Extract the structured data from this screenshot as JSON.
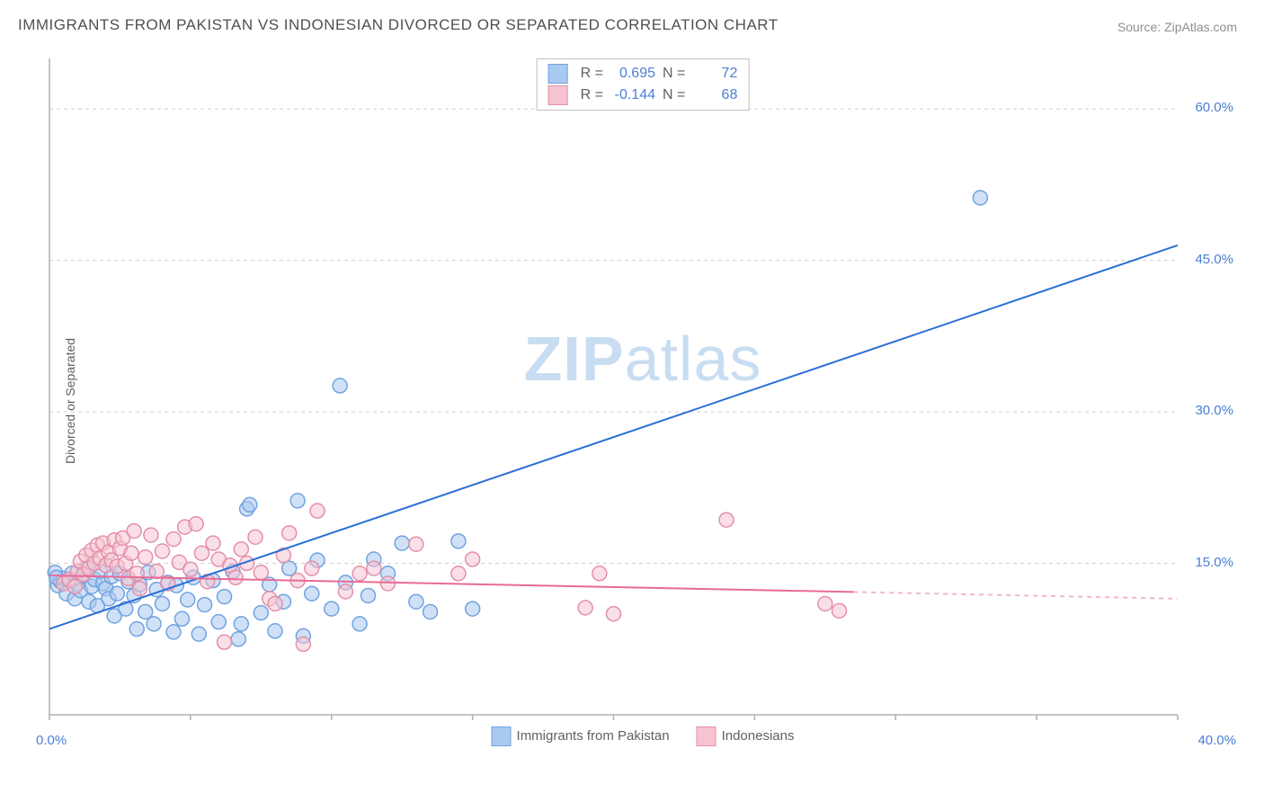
{
  "title": "IMMIGRANTS FROM PAKISTAN VS INDONESIAN DIVORCED OR SEPARATED CORRELATION CHART",
  "source": "Source: ZipAtlas.com",
  "y_axis_label": "Divorced or Separated",
  "watermark_bold": "ZIP",
  "watermark_light": "atlas",
  "chart": {
    "type": "scatter",
    "xlim": [
      0,
      40
    ],
    "ylim": [
      0,
      65
    ],
    "x_tick_labels": {
      "left": "0.0%",
      "right": "40.0%"
    },
    "y_ticks": [
      15.0,
      30.0,
      45.0,
      60.0
    ],
    "y_tick_labels": [
      "15.0%",
      "30.0%",
      "45.0%",
      "60.0%"
    ],
    "grid_color": "#d0d0d0",
    "axis_color": "#b0b0b0",
    "background_color": "#ffffff",
    "marker_radius": 8,
    "marker_stroke_width": 1.5,
    "series": [
      {
        "name": "Immigrants from Pakistan",
        "fill": "#aac9f0",
        "stroke": "#6fa3e0",
        "fill_opacity": 0.55,
        "r_label": "R =",
        "r_value": "0.695",
        "n_label": "N =",
        "n_value": "72",
        "trend": {
          "x1": 0,
          "y1": 8.5,
          "x2": 40,
          "y2": 46.5,
          "solid_until_x": 40,
          "color": "#2c6fd6",
          "width": 2
        },
        "points": [
          [
            0.3,
            12.8
          ],
          [
            0.4,
            13.2
          ],
          [
            0.5,
            13.5
          ],
          [
            0.6,
            12.0
          ],
          [
            0.8,
            14.0
          ],
          [
            0.9,
            11.5
          ],
          [
            1.0,
            13.0
          ],
          [
            1.1,
            12.3
          ],
          [
            1.2,
            13.8
          ],
          [
            1.3,
            14.5
          ],
          [
            1.4,
            11.2
          ],
          [
            1.5,
            12.7
          ],
          [
            1.6,
            13.4
          ],
          [
            1.7,
            10.8
          ],
          [
            1.8,
            14.2
          ],
          [
            1.9,
            13.0
          ],
          [
            2.0,
            12.5
          ],
          [
            2.1,
            11.5
          ],
          [
            2.2,
            13.7
          ],
          [
            2.3,
            9.8
          ],
          [
            2.4,
            12.0
          ],
          [
            2.5,
            14.0
          ],
          [
            2.7,
            10.5
          ],
          [
            2.8,
            13.2
          ],
          [
            3.0,
            11.8
          ],
          [
            3.1,
            8.5
          ],
          [
            3.2,
            12.9
          ],
          [
            3.4,
            10.2
          ],
          [
            3.5,
            14.1
          ],
          [
            3.7,
            9.0
          ],
          [
            3.8,
            12.4
          ],
          [
            4.0,
            11.0
          ],
          [
            4.2,
            13.1
          ],
          [
            4.4,
            8.2
          ],
          [
            4.5,
            12.8
          ],
          [
            4.7,
            9.5
          ],
          [
            4.9,
            11.4
          ],
          [
            5.1,
            13.6
          ],
          [
            5.3,
            8.0
          ],
          [
            5.5,
            10.9
          ],
          [
            5.8,
            13.3
          ],
          [
            6.0,
            9.2
          ],
          [
            6.2,
            11.7
          ],
          [
            6.5,
            14.2
          ],
          [
            6.7,
            7.5
          ],
          [
            6.8,
            9.0
          ],
          [
            7.0,
            20.4
          ],
          [
            7.1,
            20.8
          ],
          [
            7.5,
            10.1
          ],
          [
            7.8,
            12.9
          ],
          [
            8.0,
            8.3
          ],
          [
            8.3,
            11.2
          ],
          [
            8.5,
            14.5
          ],
          [
            8.8,
            21.2
          ],
          [
            9.0,
            7.8
          ],
          [
            9.3,
            12.0
          ],
          [
            9.5,
            15.3
          ],
          [
            10.0,
            10.5
          ],
          [
            10.3,
            32.6
          ],
          [
            10.5,
            13.1
          ],
          [
            11.0,
            9.0
          ],
          [
            11.3,
            11.8
          ],
          [
            11.5,
            15.4
          ],
          [
            12.0,
            14.0
          ],
          [
            12.5,
            17.0
          ],
          [
            13.0,
            11.2
          ],
          [
            13.5,
            10.2
          ],
          [
            14.5,
            17.2
          ],
          [
            15.0,
            10.5
          ],
          [
            33.0,
            51.2
          ],
          [
            0.2,
            14.1
          ],
          [
            0.25,
            13.6
          ]
        ]
      },
      {
        "name": "Indonesians",
        "fill": "#f6c4d1",
        "stroke": "#e390aa",
        "fill_opacity": 0.55,
        "r_label": "R =",
        "r_value": "-0.144",
        "n_label": "N =",
        "n_value": "68",
        "trend": {
          "x1": 0,
          "y1": 13.8,
          "x2": 40,
          "y2": 11.5,
          "solid_until_x": 28.5,
          "color": "#e86b94",
          "width": 2
        },
        "points": [
          [
            0.5,
            13.0
          ],
          [
            0.7,
            13.4
          ],
          [
            0.9,
            12.7
          ],
          [
            1.0,
            14.2
          ],
          [
            1.1,
            15.2
          ],
          [
            1.2,
            13.9
          ],
          [
            1.3,
            15.8
          ],
          [
            1.4,
            14.5
          ],
          [
            1.5,
            16.3
          ],
          [
            1.6,
            15.0
          ],
          [
            1.7,
            16.8
          ],
          [
            1.8,
            15.5
          ],
          [
            1.9,
            17.0
          ],
          [
            2.0,
            14.8
          ],
          [
            2.1,
            16.1
          ],
          [
            2.2,
            15.3
          ],
          [
            2.3,
            17.3
          ],
          [
            2.4,
            14.7
          ],
          [
            2.5,
            16.5
          ],
          [
            2.6,
            17.5
          ],
          [
            2.7,
            15.0
          ],
          [
            2.8,
            13.5
          ],
          [
            2.9,
            16.0
          ],
          [
            3.0,
            18.2
          ],
          [
            3.1,
            14.0
          ],
          [
            3.2,
            12.5
          ],
          [
            3.4,
            15.6
          ],
          [
            3.6,
            17.8
          ],
          [
            3.8,
            14.2
          ],
          [
            4.0,
            16.2
          ],
          [
            4.2,
            13.0
          ],
          [
            4.4,
            17.4
          ],
          [
            4.6,
            15.1
          ],
          [
            4.8,
            18.6
          ],
          [
            5.0,
            14.4
          ],
          [
            5.2,
            18.9
          ],
          [
            5.4,
            16.0
          ],
          [
            5.6,
            13.2
          ],
          [
            5.8,
            17.0
          ],
          [
            6.0,
            15.4
          ],
          [
            6.2,
            7.2
          ],
          [
            6.4,
            14.8
          ],
          [
            6.6,
            13.6
          ],
          [
            6.8,
            16.4
          ],
          [
            7.0,
            15.0
          ],
          [
            7.3,
            17.6
          ],
          [
            7.5,
            14.1
          ],
          [
            7.8,
            11.5
          ],
          [
            8.0,
            11.0
          ],
          [
            8.3,
            15.8
          ],
          [
            8.5,
            18.0
          ],
          [
            8.8,
            13.3
          ],
          [
            9.0,
            7.0
          ],
          [
            9.3,
            14.5
          ],
          [
            9.5,
            20.2
          ],
          [
            10.5,
            12.2
          ],
          [
            11.0,
            14.0
          ],
          [
            11.5,
            14.5
          ],
          [
            12.0,
            13.0
          ],
          [
            13.0,
            16.9
          ],
          [
            14.5,
            14.0
          ],
          [
            15.0,
            15.4
          ],
          [
            19.0,
            10.6
          ],
          [
            19.5,
            14.0
          ],
          [
            20.0,
            10.0
          ],
          [
            24.0,
            19.3
          ],
          [
            27.5,
            11.0
          ],
          [
            28.0,
            10.3
          ]
        ]
      }
    ]
  },
  "x_legend": {
    "series1": "Immigrants from Pakistan",
    "series2": "Indonesians"
  }
}
